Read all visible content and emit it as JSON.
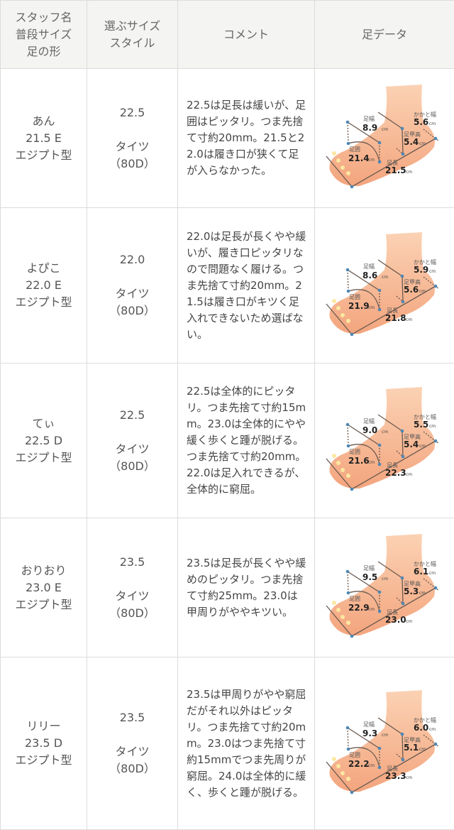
{
  "header": {
    "col1": [
      "スタッフ名",
      "普段サイズ",
      "足の形"
    ],
    "col2": [
      "選ぶサイズ",
      "スタイル"
    ],
    "col3": "コメント",
    "col4": "足データ"
  },
  "foot_labels": {
    "width": "足幅",
    "heel": "かかと幅",
    "instep": "足甲高",
    "girth": "足囲",
    "length": "足長",
    "unit": "cm"
  },
  "rows": [
    {
      "name": "あん",
      "usual": "21.5 E",
      "shape": "エジプト型",
      "size": "22.5",
      "style": "タイツ",
      "denier": "（80D）",
      "comment": "22.5は足長は緩いが、足囲はピッタリ。つま先捨て寸約20mm。21.5と22.0は履き口が狭くて足が入らなかった。",
      "foot": {
        "width": "8.9",
        "heel": "5.6",
        "instep": "5.4",
        "girth": "21.4",
        "length": "21.5"
      }
    },
    {
      "name": "よぴこ",
      "usual": "22.0 E",
      "shape": "エジプト型",
      "size": "22.0",
      "style": "タイツ",
      "denier": "（80D）",
      "comment": "22.0は足長が長くやや緩いが、履き口ピッタリなので問題なく履ける。つま先捨て寸約20mm。21.5は履き口がキツく足入れできないため選ばない。",
      "foot": {
        "width": "8.6",
        "heel": "5.9",
        "instep": "5.6",
        "girth": "21.9",
        "length": "21.8"
      }
    },
    {
      "name": "てぃ",
      "usual": "22.5 D",
      "shape": "エジプト型",
      "size": "22.5",
      "style": "タイツ",
      "denier": "（80D）",
      "comment": "22.5は全体的にピッタリ。つま先捨て寸約15mm。23.0は全体的にやや緩く歩くと踵が脱げる。つま先捨て寸約20mm。22.0は足入れできるが、全体的に窮屈。",
      "foot": {
        "width": "9.0",
        "heel": "5.5",
        "instep": "5.4",
        "girth": "21.6",
        "length": "22.3"
      }
    },
    {
      "name": "おりおり",
      "usual": "23.0 E",
      "shape": "エジプト型",
      "size": "23.5",
      "style": "タイツ",
      "denier": "（80D）",
      "comment": "23.5は足長が長くやや緩めのピッタリ。つま先捨て寸約25mm。23.0は甲周りがややキツい。",
      "foot": {
        "width": "9.5",
        "heel": "6.1",
        "instep": "5.3",
        "girth": "22.9",
        "length": "23.0"
      }
    },
    {
      "name": "リリー",
      "usual": "23.5 D",
      "shape": "エジプト型",
      "size": "23.5",
      "style": "タイツ",
      "denier": "（80D）",
      "comment": "23.5は甲周りがやや窮屈だがそれ以外はピッタリ。つま先捨て寸約20mm。23.0はつま先捨て寸約15mmでつま先周りが窮屈。24.0は全体的に緩く、歩くと踵が脱げる。",
      "foot": {
        "width": "9.3",
        "heel": "6.0",
        "instep": "5.1",
        "girth": "22.2",
        "length": "23.3"
      }
    }
  ]
}
